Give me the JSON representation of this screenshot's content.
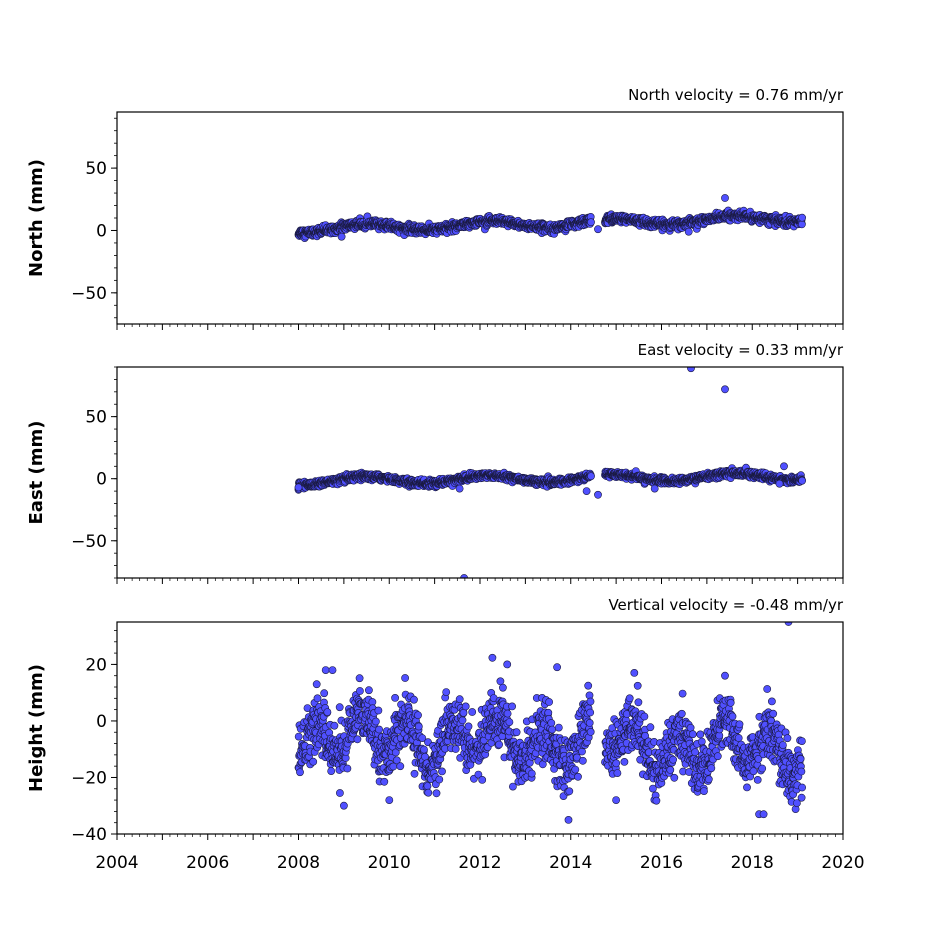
{
  "chart_data": [
    {
      "type": "scatter",
      "title": "North velocity = 0.76 mm/yr",
      "ylabel": "North (mm)",
      "xlabel": "",
      "xlim": [
        2004,
        2020
      ],
      "ylim": [
        -75,
        95
      ],
      "yticks": [
        "50",
        "0",
        "−50"
      ],
      "ytick_values": [
        50,
        0,
        -50
      ],
      "xtick_labels_visible": false,
      "grid": false,
      "marker_color": "#5050ff",
      "marker_edge": "#1a1a40",
      "series": [
        {
          "trend": {
            "start": [
              2008.0,
              1.0
            ],
            "end": [
              2019.1,
              10.0
            ]
          },
          "scatter_sd": 1.6,
          "gap": [
            2014.45,
            2014.75
          ],
          "outliers": [
            [
              2008.95,
              -5
            ],
            [
              2016.6,
              -1
            ],
            [
              2017.4,
              26
            ],
            [
              2014.6,
              1
            ]
          ]
        }
      ]
    },
    {
      "type": "scatter",
      "title": "East velocity = 0.33 mm/yr",
      "ylabel": "East (mm)",
      "xlabel": "",
      "xlim": [
        2004,
        2020
      ],
      "ylim": [
        -80,
        90
      ],
      "yticks": [
        "50",
        "0",
        "−50"
      ],
      "ytick_values": [
        50,
        0,
        -50
      ],
      "xtick_labels_visible": false,
      "grid": false,
      "marker_color": "#5050ff",
      "marker_edge": "#1a1a40",
      "series": [
        {
          "trend": {
            "start": [
              2008.0,
              -2.0
            ],
            "end": [
              2019.1,
              2.0
            ]
          },
          "scatter_sd": 1.3,
          "gap": [
            2014.45,
            2014.75
          ],
          "outliers": [
            [
              2008.0,
              -7
            ],
            [
              2011.55,
              -8
            ],
            [
              2014.35,
              -10
            ],
            [
              2014.6,
              -13
            ],
            [
              2015.85,
              -8
            ],
            [
              2016.65,
              89
            ],
            [
              2017.4,
              72
            ],
            [
              2011.65,
              -80
            ],
            [
              2018.7,
              10
            ],
            [
              2018.6,
              -4
            ]
          ]
        }
      ]
    },
    {
      "type": "scatter",
      "title": "Vertical velocity = -0.48 mm/yr",
      "ylabel": "Height (mm)",
      "xlabel": "",
      "xlim": [
        2004,
        2020
      ],
      "ylim": [
        -40,
        35
      ],
      "yticks": [
        "20",
        "0",
        "−20",
        "−40"
      ],
      "ytick_values": [
        20,
        0,
        -20,
        -40
      ],
      "xticks": [
        "2004",
        "2006",
        "2008",
        "2010",
        "2012",
        "2014",
        "2016",
        "2018",
        "2020"
      ],
      "xtick_values": [
        2004,
        2006,
        2008,
        2010,
        2012,
        2014,
        2016,
        2018,
        2020
      ],
      "grid": false,
      "marker_color": "#5050ff",
      "marker_edge": "#1a1a40",
      "series": [
        {
          "trend": {
            "start": [
              2008.0,
              -5.0
            ],
            "end": [
              2019.1,
              -10.0
            ]
          },
          "seasonal_amplitude": 7,
          "scatter_sd": 5,
          "gap": [
            2014.45,
            2014.75
          ],
          "outliers": [
            [
              2008.6,
              18
            ],
            [
              2008.75,
              18
            ],
            [
              2012.6,
              20
            ],
            [
              2013.7,
              19
            ],
            [
              2015.4,
              17
            ],
            [
              2017.4,
              16
            ],
            [
              2018.8,
              35
            ],
            [
              2013.95,
              -35
            ],
            [
              2018.15,
              -33
            ],
            [
              2018.25,
              -33
            ],
            [
              2009.0,
              -30
            ],
            [
              2010.0,
              -28
            ],
            [
              2015.0,
              -28
            ]
          ]
        }
      ]
    }
  ]
}
